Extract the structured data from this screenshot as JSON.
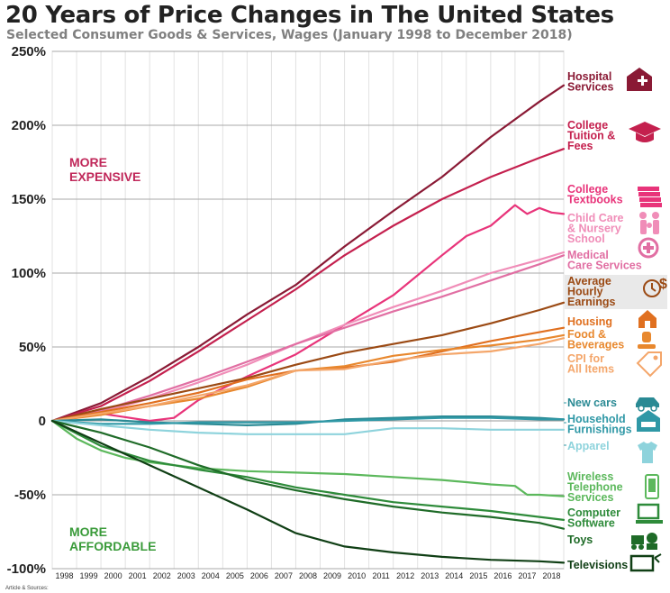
{
  "header": {
    "title": "20 Years of Price Changes in The United States",
    "subtitle": "Selected Consumer Goods & Services, Wages (January 1998 to December 2018)"
  },
  "footer": {
    "note": "Article & Sources:"
  },
  "chart_data": {
    "type": "line",
    "title": "20 Years of Price Changes in The United States",
    "subtitle": "Selected Consumer Goods & Services, Wages (January 1998 to December 2018)",
    "x_unit": "year",
    "xlim": [
      1998,
      2019
    ],
    "ylim": [
      -100,
      250
    ],
    "x_ticks": [
      "1998",
      "1999",
      "2000",
      "2001",
      "2002",
      "2003",
      "2004",
      "2005",
      "2006",
      "2007",
      "2008",
      "2009",
      "2010",
      "2011",
      "2012",
      "2013",
      "2014",
      "2015",
      "2016",
      "2017",
      "2018"
    ],
    "y_ticks": [
      {
        "value": 250,
        "label": "250%"
      },
      {
        "value": 200,
        "label": "200%"
      },
      {
        "value": 150,
        "label": "150%"
      },
      {
        "value": 100,
        "label": "100%"
      },
      {
        "value": 50,
        "label": "50%"
      },
      {
        "value": 0,
        "label": "0"
      },
      {
        "value": -50,
        "label": "-50%"
      },
      {
        "value": -100,
        "label": "-100%"
      }
    ],
    "grid": true,
    "annotations": [
      {
        "text": [
          "MORE",
          "EXPENSIVE"
        ],
        "color": "#c0285a"
      },
      {
        "text": [
          "MORE",
          "AFFORDABLE"
        ],
        "color": "#3a9b3a"
      }
    ],
    "series": [
      {
        "name": [
          "Hospital",
          "Services"
        ],
        "color": "#8a1a35",
        "icon": "hospital-heart-icon",
        "x": [
          1998,
          2000,
          2002,
          2004,
          2006,
          2008,
          2010,
          2012,
          2014,
          2016,
          2018,
          2019
        ],
        "y": [
          0,
          12,
          30,
          50,
          72,
          92,
          118,
          142,
          165,
          192,
          216,
          227
        ]
      },
      {
        "name": [
          "College",
          "Tuition &",
          "Fees"
        ],
        "color": "#c4204e",
        "icon": "graduation-cap-icon",
        "x": [
          1998,
          2000,
          2002,
          2004,
          2006,
          2008,
          2010,
          2012,
          2014,
          2016,
          2018,
          2019
        ],
        "y": [
          0,
          10,
          27,
          47,
          68,
          89,
          112,
          132,
          150,
          165,
          178,
          184
        ]
      },
      {
        "name": [
          "College",
          "Textbooks"
        ],
        "color": "#e8347a",
        "icon": "books-icon",
        "x": [
          1998,
          2000,
          2002,
          2003,
          2004,
          2006,
          2008,
          2010,
          2012,
          2014,
          2015,
          2016,
          2017,
          2017.5,
          2018,
          2018.5,
          2019
        ],
        "y": [
          0,
          5,
          0,
          2,
          14,
          30,
          45,
          65,
          85,
          112,
          125,
          132,
          146,
          140,
          144,
          141,
          140
        ]
      },
      {
        "name": [
          "Child Care",
          "& Nursery",
          "School"
        ],
        "color": "#f08db8",
        "icon": "family-icon",
        "x": [
          1998,
          2000,
          2002,
          2004,
          2006,
          2008,
          2010,
          2012,
          2014,
          2016,
          2018,
          2019
        ],
        "y": [
          0,
          6,
          15,
          26,
          38,
          52,
          65,
          77,
          88,
          100,
          109,
          114
        ]
      },
      {
        "name": [
          "Medical",
          "Care Services"
        ],
        "color": "#e16fa3",
        "icon": "medical-icon",
        "x": [
          1998,
          2000,
          2002,
          2004,
          2006,
          2008,
          2010,
          2012,
          2014,
          2016,
          2018,
          2019
        ],
        "y": [
          0,
          7,
          17,
          28,
          40,
          52,
          63,
          74,
          84,
          95,
          106,
          112
        ]
      },
      {
        "name": [
          "Average",
          "Hourly",
          "Earnings"
        ],
        "color": "#9b4a14",
        "icon": "clock-dollar-icon",
        "x": [
          1998,
          2000,
          2002,
          2004,
          2006,
          2008,
          2010,
          2012,
          2014,
          2016,
          2018,
          2019
        ],
        "y": [
          0,
          8,
          15,
          22,
          29,
          38,
          46,
          52,
          58,
          66,
          75,
          80
        ]
      },
      {
        "name": [
          "Housing"
        ],
        "color": "#e07020",
        "icon": "house-icon",
        "x": [
          1998,
          2000,
          2002,
          2004,
          2006,
          2008,
          2010,
          2012,
          2014,
          2016,
          2018,
          2019
        ],
        "y": [
          0,
          6,
          12,
          19,
          28,
          34,
          36,
          40,
          47,
          54,
          60,
          63
        ]
      },
      {
        "name": [
          "Food &",
          "Beverages"
        ],
        "color": "#e8882e",
        "icon": "food-icon",
        "x": [
          1998,
          2000,
          2002,
          2004,
          2006,
          2008,
          2010,
          2012,
          2014,
          2016,
          2018,
          2019
        ],
        "y": [
          0,
          4,
          10,
          15,
          23,
          34,
          37,
          44,
          48,
          51,
          55,
          58
        ]
      },
      {
        "name": [
          "CPI for",
          "All Items"
        ],
        "color": "#f4a66a",
        "icon": "price-tag-icon",
        "x": [
          1998,
          2000,
          2002,
          2004,
          2006,
          2008,
          2010,
          2012,
          2014,
          2016,
          2018,
          2019
        ],
        "y": [
          0,
          5,
          10,
          17,
          24,
          34,
          35,
          41,
          45,
          47,
          52,
          56
        ]
      },
      {
        "name": [
          "New cars"
        ],
        "color": "#2a8a94",
        "icon": "car-icon",
        "x": [
          1998,
          2000,
          2002,
          2004,
          2006,
          2008,
          2010,
          2012,
          2014,
          2016,
          2018,
          2019
        ],
        "y": [
          0,
          1,
          -1,
          -2,
          -3,
          -2,
          1,
          2,
          3,
          3,
          2,
          1
        ]
      },
      {
        "name": [
          "Household",
          "Furnishings"
        ],
        "color": "#2f98a6",
        "icon": "furniture-icon",
        "x": [
          1998,
          2000,
          2002,
          2004,
          2006,
          2008,
          2010,
          2012,
          2014,
          2016,
          2018,
          2019
        ],
        "y": [
          0,
          -2,
          -2,
          -1,
          -1,
          -1,
          0,
          1,
          2,
          2,
          1,
          1
        ]
      },
      {
        "name": [
          "Apparel"
        ],
        "color": "#8ed3dc",
        "icon": "apparel-icon",
        "x": [
          1998,
          2000,
          2002,
          2004,
          2006,
          2008,
          2010,
          2012,
          2014,
          2016,
          2018,
          2019
        ],
        "y": [
          0,
          -3,
          -6,
          -8,
          -9,
          -9,
          -9,
          -5,
          -5,
          -6,
          -6,
          -6
        ]
      },
      {
        "name": [
          "Wireless",
          "Telephone",
          "Services"
        ],
        "color": "#5cb85c",
        "icon": "phone-icon",
        "x": [
          1998,
          1999,
          2000,
          2001,
          2002,
          2004,
          2006,
          2008,
          2010,
          2012,
          2014,
          2016,
          2017,
          2017.5,
          2018,
          2019
        ],
        "y": [
          0,
          -12,
          -20,
          -25,
          -28,
          -32,
          -34,
          -35,
          -36,
          -38,
          -40,
          -43,
          -44,
          -50,
          -50,
          -51
        ]
      },
      {
        "name": [
          "Computer",
          "Software"
        ],
        "color": "#2e8b3a",
        "icon": "computer-icon",
        "x": [
          1998,
          2000,
          2002,
          2004,
          2006,
          2008,
          2010,
          2012,
          2014,
          2016,
          2018,
          2019
        ],
        "y": [
          0,
          -17,
          -27,
          -33,
          -38,
          -45,
          -50,
          -55,
          -58,
          -61,
          -65,
          -67
        ]
      },
      {
        "name": [
          "Toys"
        ],
        "color": "#1f6b28",
        "icon": "toys-icon",
        "x": [
          1998,
          2000,
          2002,
          2004,
          2006,
          2008,
          2010,
          2012,
          2014,
          2016,
          2018,
          2019
        ],
        "y": [
          0,
          -8,
          -18,
          -30,
          -40,
          -47,
          -53,
          -58,
          -62,
          -65,
          -69,
          -73
        ]
      },
      {
        "name": [
          "Televisions"
        ],
        "color": "#103f15",
        "icon": "tv-icon",
        "x": [
          1998,
          2000,
          2002,
          2004,
          2006,
          2008,
          2010,
          2012,
          2014,
          2016,
          2018,
          2019
        ],
        "y": [
          0,
          -15,
          -30,
          -45,
          -60,
          -76,
          -85,
          -89,
          -92,
          -94,
          -95,
          -96
        ]
      }
    ]
  }
}
